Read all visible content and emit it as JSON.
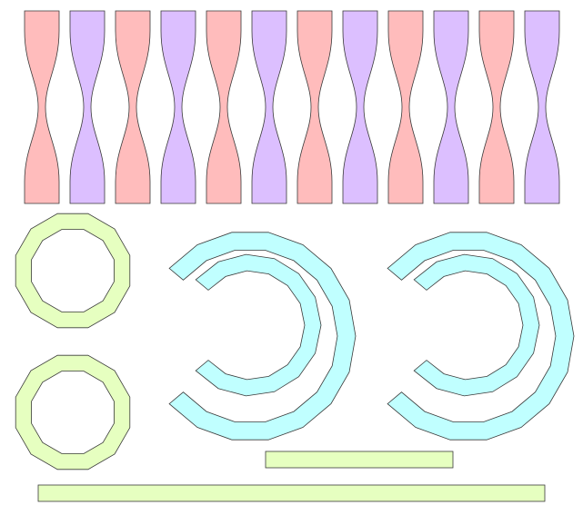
{
  "colors": {
    "pink": "#ffbcbc",
    "lavender": "#dcbfff",
    "lime": "#e6ffc0",
    "cyan": "#c0ffff",
    "stroke": "#3a3a3a",
    "background": "#ffffff"
  },
  "shapes": {
    "hourglass_strips": {
      "count": 12,
      "color_pattern": [
        "pink",
        "lavender"
      ]
    },
    "dodecagon_rings": {
      "count": 2,
      "sides": 12,
      "color": "lime"
    },
    "c_rings": {
      "count": 4,
      "color": "cyan"
    },
    "bars": {
      "count": 2,
      "color": "lime"
    }
  }
}
